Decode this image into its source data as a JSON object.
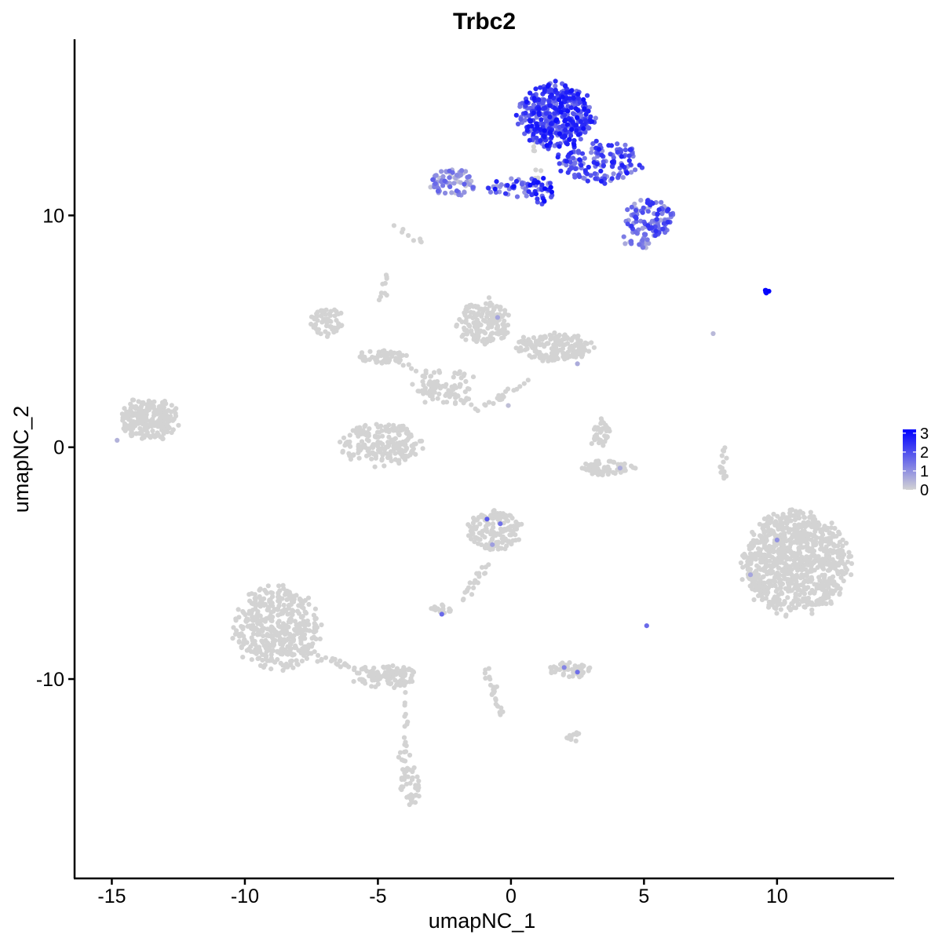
{
  "chart_data": {
    "type": "scatter",
    "title": "Trbc2",
    "xlabel": "umapNC_1",
    "ylabel": "umapNC_2",
    "xlim": [
      -16.4,
      14.4
    ],
    "ylim": [
      -18.6,
      17.6
    ],
    "x_ticks": [
      -15,
      -10,
      -5,
      0,
      5,
      10
    ],
    "x_tick_labels": [
      "-15",
      "-10",
      "-5",
      "0",
      "5",
      "10"
    ],
    "y_ticks": [
      -10,
      0,
      10
    ],
    "y_tick_labels": [
      "-10",
      "0",
      "10"
    ],
    "grid": false,
    "legend": {
      "placement": "right",
      "type": "colorbar",
      "labels": [
        "3",
        "2",
        "1",
        "0"
      ],
      "values": [
        3,
        2,
        1,
        0
      ],
      "color_low": "#d3d3d3",
      "color_high": "#0000ff",
      "max": 3.2
    },
    "point_color_low": "#d3d3d3",
    "point_color_high": "#0000ff",
    "clusters": [
      {
        "cx": 1.7,
        "cy": 14.3,
        "rx": 1.4,
        "ry": 1.4,
        "n": 420,
        "expr": [
          1.2,
          3.0
        ]
      },
      {
        "cx": 3.4,
        "cy": 12.3,
        "rx": 1.6,
        "ry": 0.9,
        "n": 150,
        "expr": [
          0.8,
          2.8
        ]
      },
      {
        "cx": 5.2,
        "cy": 9.9,
        "rx": 0.9,
        "ry": 0.8,
        "n": 100,
        "expr": [
          0.6,
          2.5
        ]
      },
      {
        "cx": 4.7,
        "cy": 8.9,
        "rx": 0.5,
        "ry": 0.4,
        "n": 25,
        "expr": [
          0.4,
          1.6
        ]
      },
      {
        "cx": -2.2,
        "cy": 11.4,
        "rx": 0.9,
        "ry": 0.6,
        "n": 70,
        "expr": [
          0.2,
          1.8
        ]
      },
      {
        "cx": 0.3,
        "cy": 11.2,
        "rx": 1.2,
        "ry": 0.4,
        "n": 50,
        "expr": [
          0.5,
          3.0
        ]
      },
      {
        "cx": 1.2,
        "cy": 11.0,
        "rx": 0.4,
        "ry": 0.6,
        "n": 20,
        "expr": [
          1.5,
          3.2
        ]
      },
      {
        "cx": 9.6,
        "cy": 6.7,
        "rx": 0.15,
        "ry": 0.08,
        "n": 6,
        "expr": [
          2.8,
          3.2
        ]
      },
      {
        "cx": -1.0,
        "cy": 5.4,
        "rx": 1.0,
        "ry": 1.0,
        "n": 160,
        "expr": [
          0,
          0
        ]
      },
      {
        "cx": 1.6,
        "cy": 4.3,
        "rx": 1.5,
        "ry": 0.6,
        "n": 180,
        "expr": [
          0,
          0
        ]
      },
      {
        "cx": -6.9,
        "cy": 5.4,
        "rx": 0.6,
        "ry": 0.7,
        "n": 60,
        "expr": [
          0,
          0
        ]
      },
      {
        "cx": -4.8,
        "cy": 3.9,
        "rx": 1.0,
        "ry": 0.3,
        "n": 60,
        "expr": [
          0,
          0
        ]
      },
      {
        "cx": -2.5,
        "cy": 2.6,
        "rx": 1.2,
        "ry": 0.8,
        "n": 70,
        "expr": [
          0,
          0
        ]
      },
      {
        "cx": -4.9,
        "cy": 0.1,
        "rx": 1.5,
        "ry": 0.9,
        "n": 200,
        "expr": [
          0,
          0
        ]
      },
      {
        "cx": -13.6,
        "cy": 1.2,
        "rx": 1.1,
        "ry": 0.9,
        "n": 230,
        "expr": [
          0,
          0
        ]
      },
      {
        "cx": 3.6,
        "cy": -0.9,
        "rx": 1.0,
        "ry": 0.3,
        "n": 70,
        "expr": [
          0,
          0
        ]
      },
      {
        "cx": 3.4,
        "cy": 0.6,
        "rx": 0.3,
        "ry": 0.6,
        "n": 25,
        "expr": [
          0,
          0
        ]
      },
      {
        "cx": 10.7,
        "cy": -5.0,
        "rx": 2.0,
        "ry": 2.2,
        "n": 900,
        "expr": [
          0,
          0
        ]
      },
      {
        "cx": -0.6,
        "cy": -3.6,
        "rx": 1.0,
        "ry": 0.9,
        "n": 150,
        "expr": [
          0,
          0
        ]
      },
      {
        "cx": -8.8,
        "cy": -7.8,
        "rx": 1.6,
        "ry": 1.8,
        "n": 450,
        "expr": [
          0,
          0
        ]
      },
      {
        "cx": -4.8,
        "cy": -9.9,
        "rx": 1.3,
        "ry": 0.5,
        "n": 90,
        "expr": [
          0,
          0
        ]
      },
      {
        "cx": -3.8,
        "cy": -14.6,
        "rx": 0.4,
        "ry": 0.8,
        "n": 40,
        "expr": [
          0,
          0
        ]
      },
      {
        "cx": 2.2,
        "cy": -9.6,
        "rx": 0.8,
        "ry": 0.4,
        "n": 45,
        "expr": [
          0,
          0
        ]
      },
      {
        "cx": 2.3,
        "cy": -12.5,
        "rx": 0.3,
        "ry": 0.3,
        "n": 12,
        "expr": [
          0,
          0
        ]
      },
      {
        "cx": -2.6,
        "cy": -7.0,
        "rx": 0.4,
        "ry": 0.2,
        "n": 20,
        "expr": [
          0,
          0
        ]
      },
      {
        "cx": 8.0,
        "cy": -0.7,
        "rx": 0.15,
        "ry": 0.8,
        "n": 15,
        "expr": [
          0,
          0
        ]
      }
    ],
    "trails": [
      {
        "from": [
          -4.3,
          3.8
        ],
        "to": [
          -1.2,
          1.6
        ],
        "n": 30
      },
      {
        "from": [
          -1.2,
          1.6
        ],
        "to": [
          0.7,
          3.0
        ],
        "n": 20
      },
      {
        "from": [
          -0.7,
          -4.8
        ],
        "to": [
          -1.8,
          -6.6
        ],
        "n": 20
      },
      {
        "from": [
          -7.3,
          -9.0
        ],
        "to": [
          -3.9,
          -10.3
        ],
        "n": 40
      },
      {
        "from": [
          -4.0,
          -10.6
        ],
        "to": [
          -4.0,
          -14.6
        ],
        "n": 25
      },
      {
        "from": [
          -0.9,
          -9.5
        ],
        "to": [
          -0.4,
          -11.6
        ],
        "n": 25
      },
      {
        "from": [
          -4.6,
          9.8
        ],
        "to": [
          -3.2,
          8.8
        ],
        "n": 8
      },
      {
        "from": [
          -5.0,
          6.1
        ],
        "to": [
          -4.6,
          7.5
        ],
        "n": 10
      },
      {
        "from": [
          1.0,
          11.0
        ],
        "to": [
          1.0,
          13.2
        ],
        "n": 10
      },
      {
        "from": [
          3.0,
          -0.1
        ],
        "to": [
          3.4,
          1.1
        ],
        "n": 10
      }
    ]
  }
}
